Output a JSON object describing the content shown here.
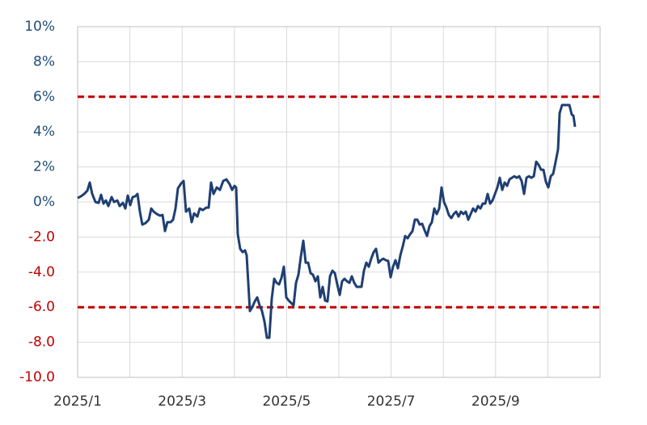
{
  "chart_data": {
    "type": "line",
    "color": "#1f3f73",
    "xlim": [
      1,
      11
    ],
    "xticks": [
      {
        "value": 1,
        "label": "2025/1"
      },
      {
        "value": 2,
        "label": null
      },
      {
        "value": 3,
        "label": "2025/3"
      },
      {
        "value": 4,
        "label": null
      },
      {
        "value": 5,
        "label": "2025/5"
      },
      {
        "value": 6,
        "label": null
      },
      {
        "value": 7,
        "label": "2025/7"
      },
      {
        "value": 8,
        "label": null
      },
      {
        "value": 9,
        "label": "2025/9"
      },
      {
        "value": 10,
        "label": null
      },
      {
        "value": 11,
        "label": null
      }
    ],
    "ylim": [
      -10,
      10
    ],
    "yticks": [
      {
        "value": 10,
        "label": "10%",
        "color": "#1f4e79"
      },
      {
        "value": 8,
        "label": "8%",
        "color": "#1f4e79"
      },
      {
        "value": 6,
        "label": "6%",
        "color": "#1f4e79"
      },
      {
        "value": 4,
        "label": "4%",
        "color": "#1f4e79"
      },
      {
        "value": 2,
        "label": "2%",
        "color": "#1f4e79"
      },
      {
        "value": 0,
        "label": "0%",
        "color": "#1f4e79"
      },
      {
        "value": -2,
        "label": "-2.0",
        "color": "#c00000"
      },
      {
        "value": -4,
        "label": "-4.0",
        "color": "#c00000"
      },
      {
        "value": -6,
        "label": "-6.0",
        "color": "#c00000"
      },
      {
        "value": -8,
        "label": "-8.0",
        "color": "#c00000"
      },
      {
        "value": -10,
        "label": "-10.0",
        "color": "#c00000"
      }
    ],
    "grid": true,
    "hlines": [
      {
        "value": 6,
        "color": "#c00000",
        "style": "dashed"
      },
      {
        "value": -6,
        "color": "#c00000",
        "style": "dashed"
      }
    ],
    "x": [
      1.0,
      1.062,
      1.124,
      1.186,
      1.232,
      1.279,
      1.341,
      1.402,
      1.449,
      1.495,
      1.542,
      1.588,
      1.65,
      1.697,
      1.759,
      1.805,
      1.867,
      1.913,
      1.96,
      2.006,
      2.053,
      2.099,
      2.146,
      2.192,
      2.238,
      2.3,
      2.362,
      2.409,
      2.455,
      2.517,
      2.579,
      2.625,
      2.672,
      2.718,
      2.78,
      2.827,
      2.873,
      2.92,
      2.981,
      3.028,
      3.074,
      3.136,
      3.183,
      3.229,
      3.291,
      3.337,
      3.399,
      3.461,
      3.508,
      3.554,
      3.601,
      3.663,
      3.724,
      3.786,
      3.848,
      3.91,
      3.957,
      4.003,
      4.034,
      4.065,
      4.111,
      4.158,
      4.204,
      4.235,
      4.266,
      4.297,
      4.344,
      4.39,
      4.437,
      4.483,
      4.529,
      4.576,
      4.622,
      4.669,
      4.715,
      4.762,
      4.808,
      4.855,
      4.901,
      4.947,
      4.994,
      5.04,
      5.087,
      5.133,
      5.18,
      5.226,
      5.272,
      5.319,
      5.365,
      5.412,
      5.458,
      5.505,
      5.551,
      5.598,
      5.644,
      5.69,
      5.737,
      5.783,
      5.83,
      5.876,
      5.923,
      5.969,
      6.016,
      6.062,
      6.108,
      6.155,
      6.201,
      6.248,
      6.294,
      6.341,
      6.387,
      6.433,
      6.48,
      6.526,
      6.573,
      6.619,
      6.666,
      6.712,
      6.759,
      6.805,
      6.851,
      6.898,
      6.944,
      6.991,
      7.037,
      7.084,
      7.13,
      7.177,
      7.223,
      7.269,
      7.316,
      7.362,
      7.409,
      7.455,
      7.502,
      7.548,
      7.594,
      7.641,
      7.687,
      7.734,
      7.78,
      7.827,
      7.873,
      7.92,
      7.966,
      8.012,
      8.059,
      8.105,
      8.152,
      8.198,
      8.245,
      8.291,
      8.337,
      8.384,
      8.43,
      8.477,
      8.523,
      8.57,
      8.616,
      8.663,
      8.709,
      8.755,
      8.802,
      8.848,
      8.895,
      8.941,
      8.988,
      9.034,
      9.08,
      9.127,
      9.173,
      9.22,
      9.266,
      9.313,
      9.359,
      9.406,
      9.452,
      9.498,
      9.545,
      9.591,
      9.638,
      9.684,
      9.731,
      9.777,
      9.824,
      9.87,
      9.916,
      9.963,
      10.009,
      10.056,
      10.102,
      10.149,
      10.195,
      10.226,
      10.272,
      10.319,
      10.365,
      10.412,
      10.458,
      10.489,
      10.52
    ],
    "values": [
      0.23,
      0.32,
      0.46,
      0.65,
      1.11,
      0.46,
      0,
      -0.05,
      0.41,
      -0.09,
      0.09,
      -0.23,
      0.28,
      0,
      0.09,
      -0.23,
      -0.05,
      -0.37,
      0.37,
      -0.18,
      0.28,
      0.32,
      0.46,
      -0.55,
      -1.29,
      -1.2,
      -1.01,
      -0.37,
      -0.55,
      -0.69,
      -0.78,
      -0.74,
      -1.66,
      -1.15,
      -1.15,
      -1.01,
      -0.37,
      0.78,
      1.06,
      1.2,
      -0.55,
      -0.37,
      -1.15,
      -0.65,
      -0.83,
      -0.37,
      -0.46,
      -0.32,
      -0.32,
      1.11,
      0.46,
      0.83,
      0.69,
      1.2,
      1.29,
      1.01,
      0.69,
      0.92,
      0.83,
      -1.84,
      -2.67,
      -2.86,
      -2.76,
      -3.04,
      -4.61,
      -6.22,
      -5.99,
      -5.67,
      -5.44,
      -5.9,
      -6.22,
      -6.82,
      -7.74,
      -7.74,
      -5.53,
      -4.38,
      -4.61,
      -4.7,
      -4.33,
      -3.69,
      -5.44,
      -5.62,
      -5.76,
      -5.9,
      -4.61,
      -4.15,
      -3.13,
      -2.21,
      -3.46,
      -3.46,
      -4.06,
      -4.15,
      -4.52,
      -4.24,
      -5.44,
      -4.84,
      -5.62,
      -5.67,
      -4.24,
      -3.92,
      -4.06,
      -4.7,
      -5.3,
      -4.52,
      -4.38,
      -4.52,
      -4.61,
      -4.24,
      -4.61,
      -4.84,
      -4.84,
      -4.84,
      -3.92,
      -3.46,
      -3.69,
      -3.23,
      -2.86,
      -2.67,
      -3.46,
      -3.32,
      -3.23,
      -3.32,
      -3.36,
      -4.29,
      -3.69,
      -3.32,
      -3.78,
      -3.04,
      -2.53,
      -1.94,
      -2.07,
      -1.84,
      -1.66,
      -1.01,
      -1.01,
      -1.29,
      -1.24,
      -1.61,
      -1.94,
      -1.38,
      -1.15,
      -0.37,
      -0.69,
      -0.37,
      0.83,
      0,
      -0.32,
      -0.74,
      -0.92,
      -0.69,
      -0.55,
      -0.83,
      -0.55,
      -0.69,
      -0.55,
      -1.01,
      -0.69,
      -0.37,
      -0.55,
      -0.23,
      -0.37,
      -0.09,
      -0.09,
      0.46,
      -0.09,
      0.09,
      0.46,
      0.83,
      1.38,
      0.69,
      1.11,
      0.92,
      1.29,
      1.38,
      1.47,
      1.38,
      1.47,
      1.2,
      0.46,
      1.38,
      1.47,
      1.38,
      1.47,
      2.3,
      2.12,
      1.84,
      1.84,
      1.15,
      0.83,
      1.47,
      1.61,
      2.3,
      3.0,
      5.07,
      5.53,
      5.53,
      5.53,
      5.53,
      4.98,
      4.93,
      4.29
    ]
  }
}
